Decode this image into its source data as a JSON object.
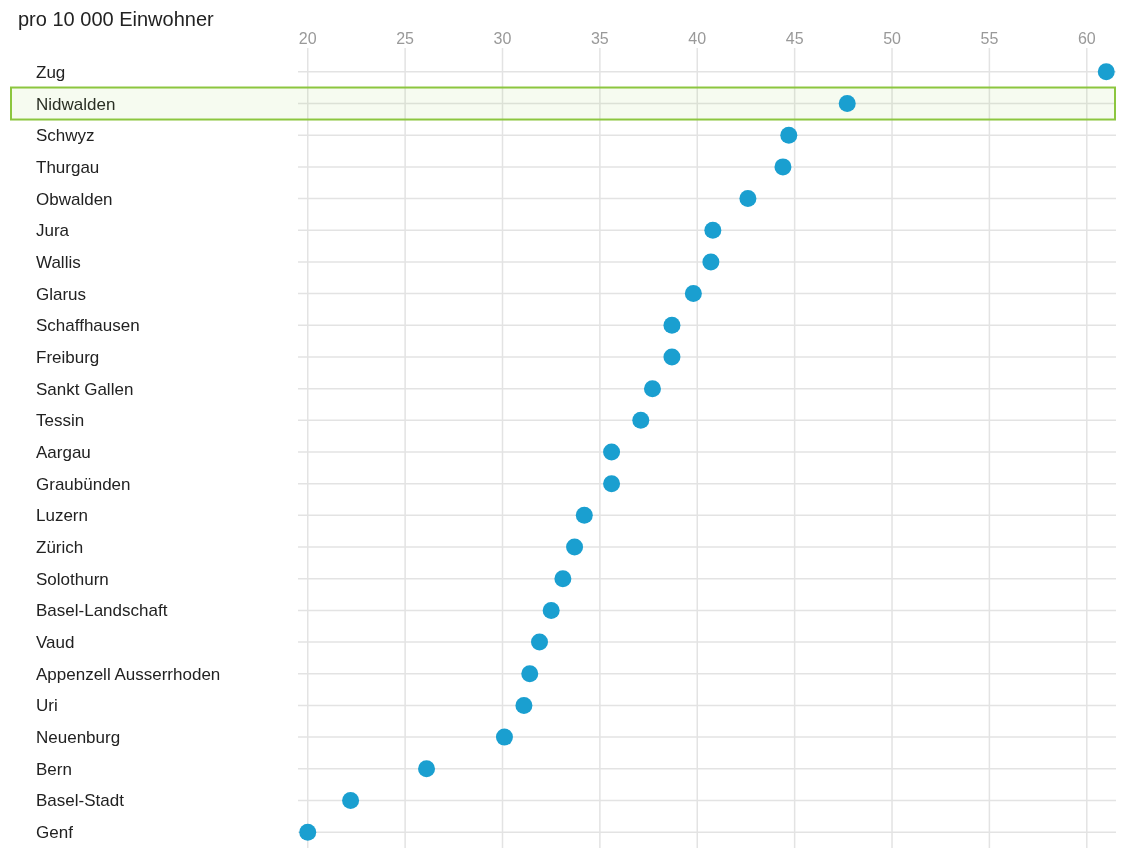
{
  "chart_data": {
    "type": "scatter",
    "orientation": "horizontal",
    "title": "pro 10 000 Einwohner",
    "categories": [
      "Zug",
      "Nidwalden",
      "Schwyz",
      "Thurgau",
      "Obwalden",
      "Jura",
      "Wallis",
      "Glarus",
      "Schaffhausen",
      "Freiburg",
      "Sankt Gallen",
      "Tessin",
      "Aargau",
      "Graubünden",
      "Luzern",
      "Zürich",
      "Solothurn",
      "Basel-Landschaft",
      "Vaud",
      "Appenzell Ausserrhoden",
      "Uri",
      "Neuenburg",
      "Bern",
      "Basel-Stadt",
      "Genf"
    ],
    "values": [
      61.0,
      47.7,
      44.7,
      44.4,
      42.6,
      40.8,
      40.7,
      39.8,
      38.7,
      38.7,
      37.7,
      37.1,
      35.6,
      35.6,
      34.2,
      33.7,
      33.1,
      32.5,
      31.9,
      31.4,
      31.1,
      30.1,
      26.1,
      22.2,
      20.0
    ],
    "color": "#1a9fd0",
    "marker": "circle",
    "bands": [
      {
        "axis": "y",
        "from": "Nidwalden",
        "to": "Nidwalden",
        "color": "#8cc63f"
      }
    ],
    "xlim": [
      19.5,
      61.5
    ],
    "xticks": [
      20,
      25,
      30,
      35,
      40,
      45,
      50,
      55,
      60
    ],
    "grid": true
  }
}
